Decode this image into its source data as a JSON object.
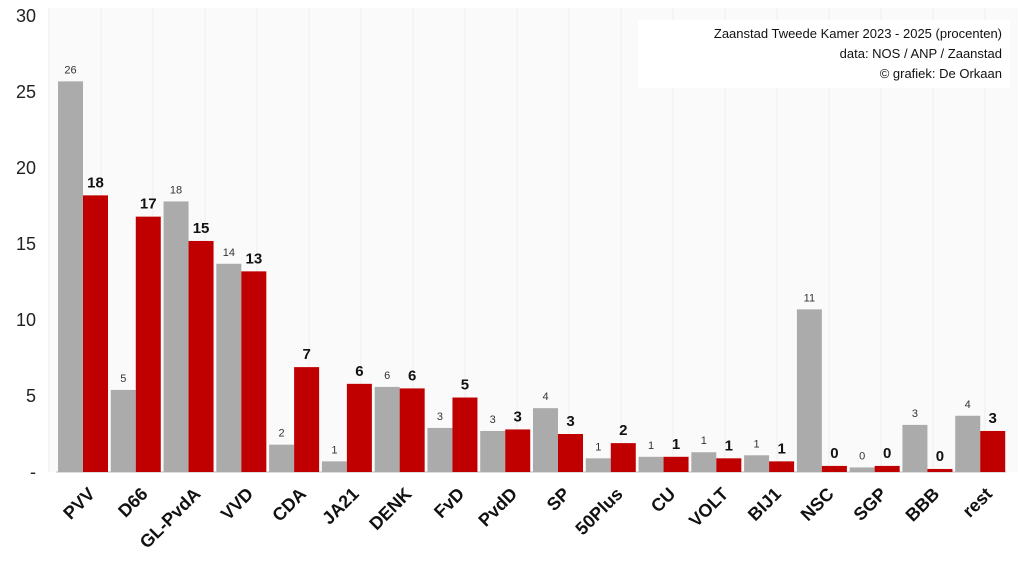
{
  "info": {
    "line1": "Zaanstad Tweede Kamer 2023 - 2025 (procenten)",
    "line2": "data: NOS / ANP / Zaanstad",
    "line3": "© grafiek: De Orkaan"
  },
  "chart_data": {
    "type": "bar",
    "title": "Zaanstad Tweede Kamer 2023 - 2025 (procenten)",
    "xlabel": "",
    "ylabel": "",
    "ylim": [
      0,
      30
    ],
    "y_ticks": [
      {
        "value": 30,
        "label": "30"
      },
      {
        "value": 25,
        "label": "25"
      },
      {
        "value": 20,
        "label": "20"
      },
      {
        "value": 15,
        "label": "15"
      },
      {
        "value": 10,
        "label": "10"
      },
      {
        "value": 5,
        "label": "5"
      },
      {
        "value": 0,
        "label": "-"
      }
    ],
    "grid": false,
    "legend": "none",
    "categories": [
      "PVV",
      "D66",
      "GL-PvdA",
      "VVD",
      "CDA",
      "JA21",
      "DENK",
      "FvD",
      "PvdD",
      "SP",
      "50Plus",
      "CU",
      "VOLT",
      "BIJ1",
      "NSC",
      "SGP",
      "BBB",
      "rest"
    ],
    "series": [
      {
        "color": "#ababab",
        "values": [
          25.7,
          5.4,
          17.8,
          13.7,
          1.8,
          0.7,
          5.6,
          2.9,
          2.7,
          4.2,
          0.9,
          1.0,
          1.3,
          1.1,
          10.7,
          0.3,
          3.1,
          3.7
        ],
        "labels": [
          "26",
          "5",
          "18",
          "14",
          "2",
          "1",
          "6",
          "3",
          "3",
          "4",
          "1",
          "1",
          "1",
          "1",
          "11",
          "0",
          "3",
          "4"
        ]
      },
      {
        "color": "#c00000",
        "values": [
          18.2,
          16.8,
          15.2,
          13.2,
          6.9,
          5.8,
          5.5,
          4.9,
          2.8,
          2.5,
          1.9,
          1.0,
          0.9,
          0.7,
          0.4,
          0.4,
          0.2,
          2.7
        ],
        "labels": [
          "18",
          "17",
          "15",
          "13",
          "7",
          "6",
          "6",
          "5",
          "3",
          "3",
          "2",
          "1",
          "1",
          "1",
          "0",
          "0",
          "0",
          "3"
        ]
      }
    ]
  }
}
